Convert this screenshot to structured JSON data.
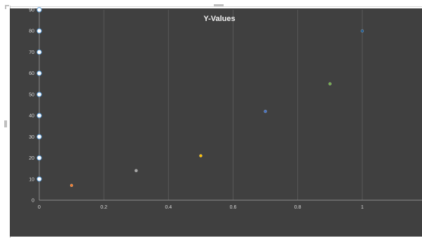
{
  "chart_data": {
    "type": "scatter",
    "title": "Y-Values",
    "xlabel": "",
    "ylabel": "",
    "xlim": [
      0,
      1.2
    ],
    "ylim": [
      0,
      90
    ],
    "xticks": [
      "0",
      "0.2",
      "0.4",
      "0.6",
      "0.8",
      "1"
    ],
    "yticks": [
      "0",
      "10",
      "20",
      "30",
      "40",
      "50",
      "60",
      "70",
      "80",
      "90"
    ],
    "grid": "vertical",
    "legend": "none",
    "background": "#404040",
    "points": [
      {
        "x": 0.1,
        "y": 7,
        "color": "#ed7d31"
      },
      {
        "x": 0.3,
        "y": 14,
        "color": "#a5a5a5"
      },
      {
        "x": 0.5,
        "y": 21,
        "color": "#ffc000"
      },
      {
        "x": 0.7,
        "y": 42,
        "color": "#4472c4"
      },
      {
        "x": 0.9,
        "y": 55,
        "color": "#70ad47"
      },
      {
        "x": 1.0,
        "y": 80,
        "color": "#255e91"
      }
    ],
    "y_axis_points": [
      10,
      20,
      30,
      40,
      50,
      60,
      70,
      80,
      90
    ]
  }
}
